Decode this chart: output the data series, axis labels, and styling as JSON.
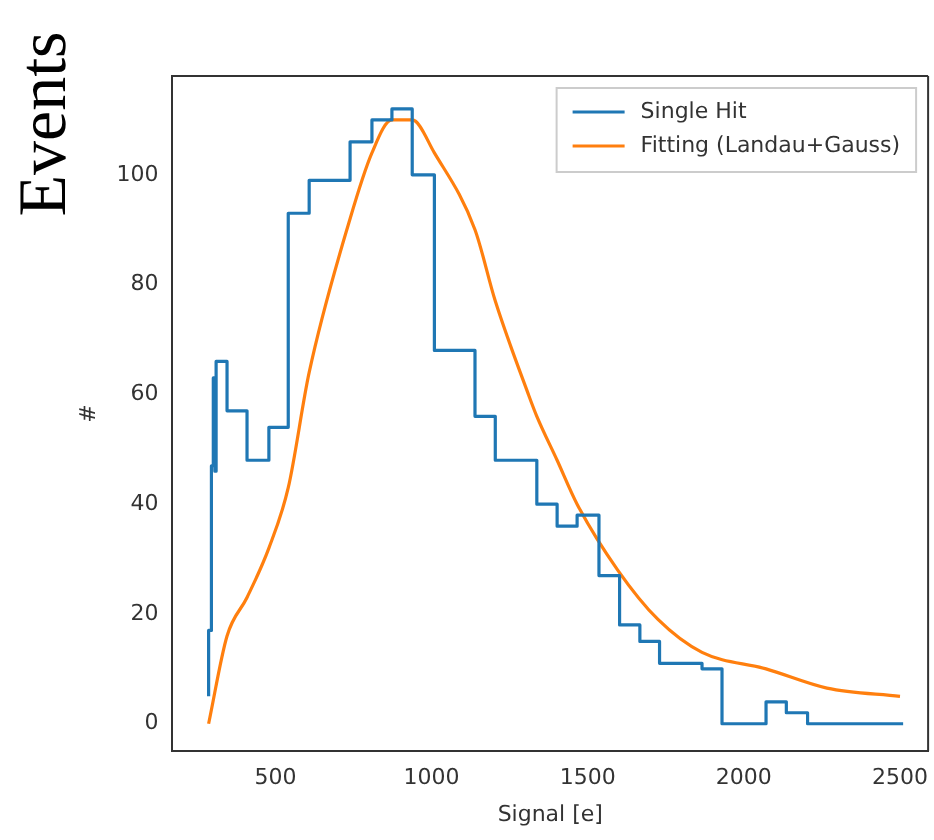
{
  "chart_data": {
    "type": "step",
    "xlabel": "Signal [e]",
    "ylabel": "#",
    "annotations": [
      "Events"
    ],
    "xlim": [
      170,
      2590
    ],
    "ylim": [
      -5,
      118
    ],
    "xticks": [
      500,
      1000,
      1500,
      2000,
      2500
    ],
    "yticks": [
      0,
      20,
      40,
      60,
      80,
      100
    ],
    "grid": false,
    "legend": "top right",
    "marker": "none",
    "series": [
      {
        "name": "Single Hit",
        "color": "#1f77b4",
        "x": [
          286,
          295,
          301,
          306,
          310,
          345,
          409,
          479,
          541,
          608,
          739,
          809,
          873,
          938,
          1009,
          1139,
          1204,
          1337,
          1402,
          1466,
          1536,
          1602,
          1667,
          1730,
          1866,
          1930,
          2071,
          2136,
          2204,
          2271,
          2510
        ],
        "values": [
          5,
          17,
          47,
          63,
          46,
          66,
          57,
          48,
          54,
          93,
          99,
          106,
          110,
          112,
          100,
          68,
          56,
          48,
          40,
          36,
          38,
          27,
          18,
          15,
          11,
          10,
          0,
          4,
          2,
          0,
          0
        ]
      },
      {
        "name": "Fitting (Landau+Gauss)",
        "type": "line",
        "color": "#ff7f0e",
        "x": [
          286,
          345,
          409,
          479,
          541,
          608,
          739,
          809,
          873,
          938,
          1009,
          1139,
          1204,
          1310,
          1337,
          1402,
          1466,
          1596,
          1725,
          1866,
          2071,
          2266,
          2500
        ],
        "values": [
          0,
          16,
          23,
          32,
          43,
          64,
          92,
          104,
          110,
          110,
          104,
          90,
          77,
          60,
          56,
          48,
          40,
          28,
          19,
          13,
          10,
          6.5,
          5
        ]
      }
    ]
  }
}
